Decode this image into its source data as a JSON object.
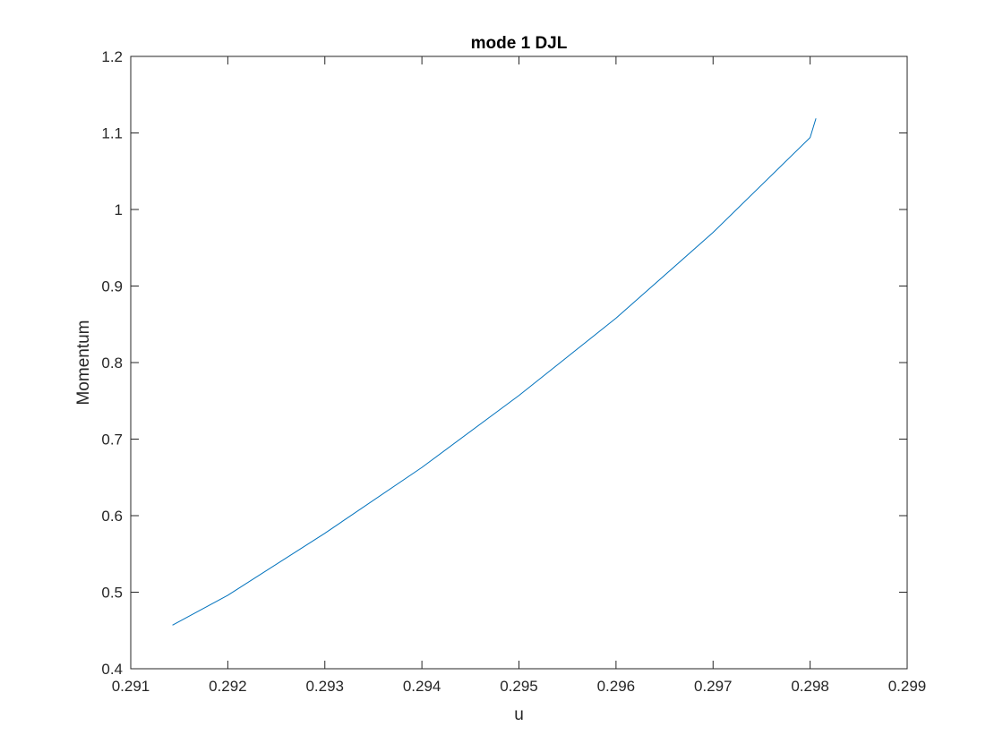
{
  "chart_data": {
    "type": "line",
    "title": "mode 1 DJL",
    "xlabel": "u",
    "ylabel": "Momentum",
    "xlim": [
      0.291,
      0.299
    ],
    "ylim": [
      0.4,
      1.2
    ],
    "xticks": [
      0.291,
      0.292,
      0.293,
      0.294,
      0.295,
      0.296,
      0.297,
      0.298,
      0.299
    ],
    "yticks": [
      0.4,
      0.5,
      0.6,
      0.7,
      0.8,
      0.9,
      1.0,
      1.1,
      1.2
    ],
    "xtick_labels": [
      "0.291",
      "0.292",
      "0.293",
      "0.294",
      "0.295",
      "0.296",
      "0.297",
      "0.298",
      "0.299"
    ],
    "ytick_labels": [
      "0.4",
      "0.5",
      "0.6",
      "0.7",
      "0.8",
      "0.9",
      "1",
      "1.1",
      "1.2"
    ],
    "grid": false,
    "box": true,
    "series": [
      {
        "color": "#0072BD",
        "x": [
          0.29143,
          0.292,
          0.293,
          0.294,
          0.295,
          0.296,
          0.297,
          0.298,
          0.29806
        ],
        "y": [
          0.457,
          0.496,
          0.577,
          0.663,
          0.757,
          0.858,
          0.97,
          1.094,
          1.119
        ]
      }
    ]
  }
}
